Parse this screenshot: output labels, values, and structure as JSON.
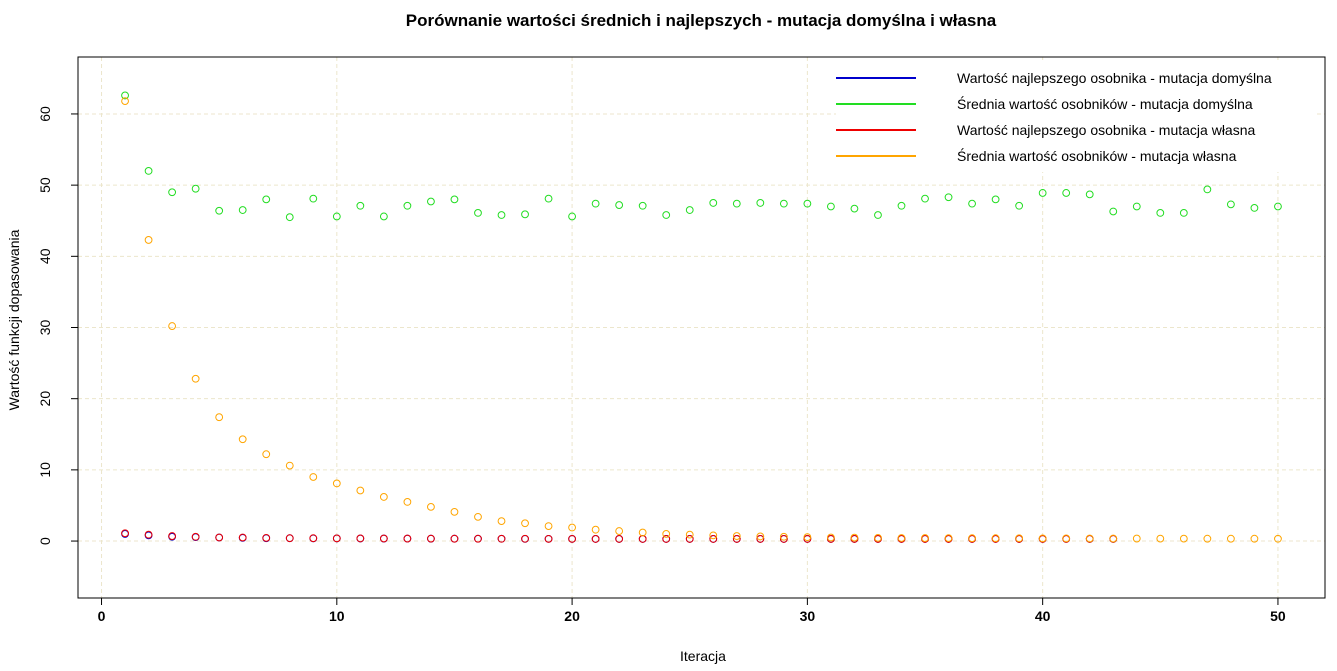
{
  "chart_data": {
    "type": "scatter",
    "title": "Porównanie wartości średnich i najlepszych - mutacja domyślna i własna",
    "xlabel": "Iteracja",
    "ylabel": "Wartość funkcji dopasowania",
    "xlim": [
      -1,
      52
    ],
    "ylim": [
      -8,
      68
    ],
    "xticks": [
      0,
      10,
      20,
      30,
      40,
      50
    ],
    "yticks": [
      0,
      10,
      20,
      30,
      40,
      50,
      60
    ],
    "grid": true,
    "legend_position": "top-right",
    "x": [
      1,
      2,
      3,
      4,
      5,
      6,
      7,
      8,
      9,
      10,
      11,
      12,
      13,
      14,
      15,
      16,
      17,
      18,
      19,
      20,
      21,
      22,
      23,
      24,
      25,
      26,
      27,
      28,
      29,
      30,
      31,
      32,
      33,
      34,
      35,
      36,
      37,
      38,
      39,
      40,
      41,
      42,
      43,
      44,
      45,
      46,
      47,
      48,
      49,
      50
    ],
    "series": [
      {
        "name": "Wartość najlepszego osobnika - mutacja domyślna",
        "color": "#0000cc",
        "values": [
          1.0,
          0.8,
          0.6,
          0.55,
          0.5,
          0.45,
          0.4,
          0.4,
          0.38,
          0.37,
          0.36,
          0.35,
          0.34,
          0.33,
          0.33,
          0.32,
          0.32,
          0.31,
          0.31,
          0.3,
          0.3,
          0.3,
          0.3,
          0.3,
          0.3,
          0.3,
          0.3,
          0.3,
          0.3,
          0.3,
          0.3,
          0.3,
          0.3,
          0.3,
          0.3,
          0.3,
          0.3,
          0.3,
          0.3,
          0.3,
          0.3,
          0.3,
          0.3,
          null,
          null,
          null,
          null,
          null,
          null,
          null
        ]
      },
      {
        "name": "Średnia wartość osobników - mutacja domyślna",
        "color": "#22dd22",
        "values": [
          62.6,
          52.0,
          49.0,
          49.5,
          46.4,
          46.5,
          48.0,
          45.5,
          48.1,
          45.6,
          47.1,
          45.6,
          47.1,
          47.7,
          48.0,
          46.1,
          45.8,
          45.9,
          48.1,
          45.6,
          47.4,
          47.2,
          47.1,
          45.8,
          46.5,
          47.5,
          47.4,
          47.5,
          47.4,
          47.4,
          47.0,
          46.7,
          45.8,
          47.1,
          48.1,
          48.3,
          47.4,
          48.0,
          47.1,
          48.9,
          48.9,
          48.7,
          46.3,
          47.0,
          46.1,
          46.1,
          49.4,
          47.3,
          46.8,
          47.0
        ]
      },
      {
        "name": "Wartość najlepszego osobnika - mutacja własna",
        "color": "#ee0000",
        "values": [
          1.1,
          0.9,
          0.7,
          0.6,
          0.5,
          0.5,
          0.45,
          0.4,
          0.4,
          0.38,
          0.37,
          0.36,
          0.35,
          0.34,
          0.33,
          0.33,
          0.32,
          0.32,
          0.31,
          0.31,
          0.3,
          0.3,
          0.3,
          0.3,
          0.3,
          0.3,
          0.3,
          0.3,
          0.3,
          0.3,
          0.3,
          0.3,
          0.3,
          0.3,
          0.3,
          0.3,
          0.3,
          0.3,
          0.3,
          0.3,
          0.3,
          0.3,
          0.3,
          null,
          null,
          null,
          null,
          null,
          null,
          null
        ]
      },
      {
        "name": "Średnia wartość osobników - mutacja własna",
        "color": "#ffa500",
        "values": [
          61.8,
          42.3,
          30.2,
          22.8,
          17.4,
          14.3,
          12.2,
          10.6,
          9.0,
          8.1,
          7.1,
          6.2,
          5.5,
          4.8,
          4.1,
          3.4,
          2.8,
          2.5,
          2.1,
          1.9,
          1.6,
          1.4,
          1.2,
          1.0,
          0.9,
          0.8,
          0.7,
          0.65,
          0.6,
          0.55,
          0.5,
          0.48,
          0.45,
          0.43,
          0.42,
          0.41,
          0.4,
          0.4,
          0.39,
          0.38,
          0.37,
          0.36,
          0.35,
          0.35,
          0.34,
          0.34,
          0.33,
          0.33,
          0.33,
          0.32
        ]
      }
    ]
  }
}
